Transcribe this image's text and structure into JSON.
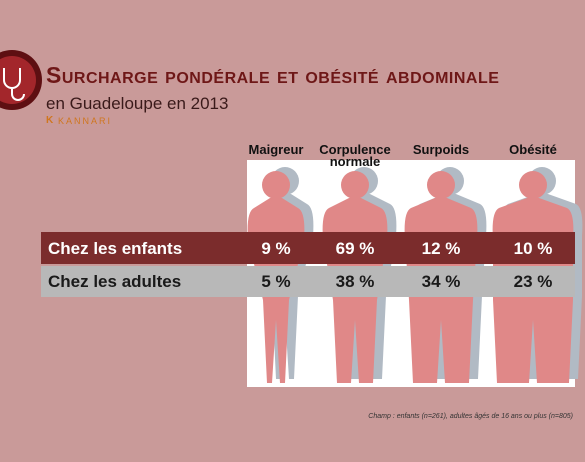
{
  "header": {
    "title": "Surcharge pondérale et obésité abdominale",
    "subtitle": "en Guadeloupe en 2013",
    "brand": "KANNARI"
  },
  "table": {
    "columns": [
      "Maigreur",
      "Corpulence normale",
      "Surpoids",
      "Obésité"
    ],
    "rows": [
      {
        "label": "Chez les enfants",
        "cells": [
          "9 %",
          "69 %",
          "12 %",
          "10 %"
        ]
      },
      {
        "label": "Chez les adultes",
        "cells": [
          "5 %",
          "38 %",
          "34 %",
          "23 %"
        ]
      }
    ]
  },
  "footnote": "Champ : enfants (n=261), adultes âgés de 16 ans ou plus (n=805)"
}
